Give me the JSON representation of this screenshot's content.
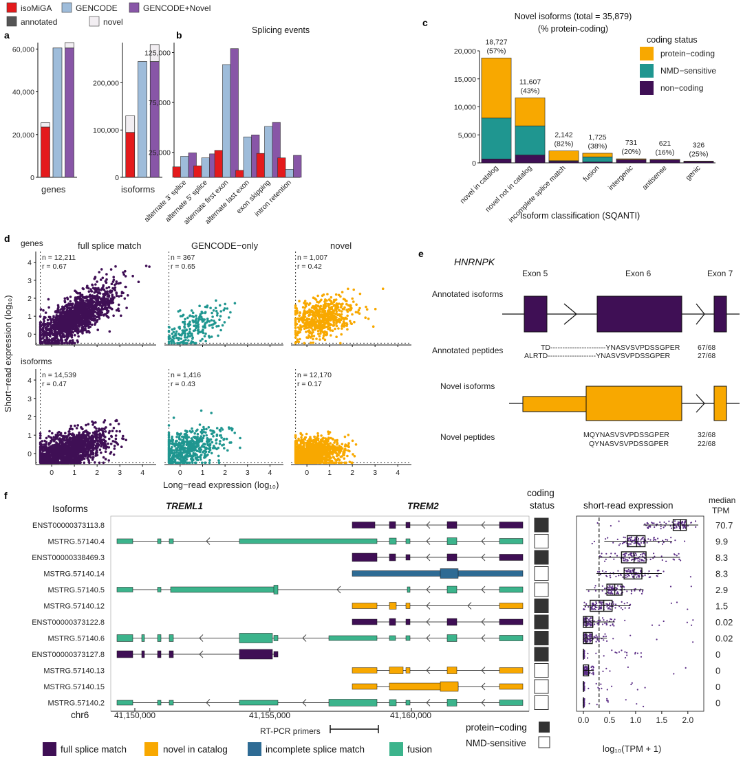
{
  "colors": {
    "isomiga": "#e41a1c",
    "gencode": "#9ebcda",
    "gencode_novel": "#8856a7",
    "annotated": "#555555",
    "novel": "#f2eef2",
    "protein_coding": "#f8a800",
    "nmd": "#1f9690",
    "noncoding": "#3f0f55",
    "fsm": "#3f0f55",
    "nic": "#f8a800",
    "ism": "#2e6b94",
    "fusion": "#3cb48c"
  },
  "legend_top": {
    "items": [
      "isoMiGA",
      "GENCODE",
      "GENCODE+Novel"
    ],
    "shading": [
      "annotated",
      "novel"
    ]
  },
  "panel_a": {
    "label": "a",
    "chart_data": [
      {
        "type": "bar",
        "xlabel": "genes",
        "categories": [
          "isoMiGA",
          "GENCODE",
          "GENCODE+Novel"
        ],
        "annotated": [
          23500,
          60500,
          60500
        ],
        "novel": [
          2000,
          0,
          2500
        ],
        "ylim": [
          0,
          63000
        ],
        "yticks": [
          "0",
          "20,000",
          "40,000",
          "60,000"
        ]
      },
      {
        "type": "bar",
        "xlabel": "isoforms",
        "categories": [
          "isoMiGA",
          "GENCODE",
          "GENCODE+Novel"
        ],
        "annotated": [
          95000,
          245000,
          245000
        ],
        "novel": [
          35000,
          0,
          35879
        ],
        "ylim": [
          0,
          285000
        ],
        "yticks": [
          "0",
          "100,000",
          "200,000"
        ]
      }
    ]
  },
  "panel_b": {
    "label": "b",
    "chart_data": {
      "type": "bar",
      "title": "Splicing events",
      "categories": [
        "alternate 3' splice",
        "alternate 5' splice",
        "alternate first exon",
        "alternate last exon",
        "exon skipping",
        "intron retention"
      ],
      "series": [
        {
          "name": "isoMiGA",
          "values": [
            10500,
            11500,
            27000,
            7000,
            24000,
            19500
          ]
        },
        {
          "name": "GENCODE",
          "values": [
            21000,
            19500,
            113000,
            40500,
            51000,
            8000
          ]
        },
        {
          "name": "GENCODE+Novel",
          "values": [
            24500,
            23500,
            129000,
            42500,
            55000,
            22000
          ]
        }
      ],
      "ylim": [
        0,
        135000
      ],
      "yticks": [
        "25,000",
        "75,000",
        "125,000"
      ]
    }
  },
  "panel_c": {
    "label": "c",
    "chart_data": {
      "type": "bar",
      "title": "Novel isoforms (total = 35,879)",
      "subtitle": "(% protein-coding)",
      "xlabel": "Isoform classification (SQANTI)",
      "legend_title": "coding status",
      "legend": [
        "protein−coding",
        "NMD−sensitive",
        "non−coding"
      ],
      "categories": [
        "novel in catalog",
        "novel not in catalog",
        "incomplete splice match",
        "fusion",
        "intergenic",
        "antisense",
        "genic"
      ],
      "totals": [
        18727,
        11607,
        2142,
        1725,
        731,
        621,
        326
      ],
      "totals_label": [
        "18,727",
        "11,607",
        "2,142",
        "1,725",
        "731",
        "621",
        "326"
      ],
      "pct_label": [
        "(57%)",
        "(43%)",
        "(82%)",
        "(38%)",
        "(20%)",
        "(16%)",
        "(25%)"
      ],
      "protein_coding": [
        10727,
        5000,
        1756,
        655,
        146,
        99,
        82
      ],
      "nmd_sensitive": [
        7300,
        5200,
        100,
        900,
        0,
        0,
        0
      ],
      "non_coding": [
        700,
        1407,
        286,
        170,
        585,
        522,
        244
      ],
      "ylim": [
        0,
        20000
      ],
      "yticks": [
        "0",
        "5,000",
        "10,000",
        "15,000",
        "20,000"
      ]
    }
  },
  "panel_d": {
    "label": "d",
    "xlabel": "Long−read expression (log₁₀)",
    "ylabel": "Short−read expression (log₁₀)",
    "row_labels": [
      "genes",
      "isoforms"
    ],
    "col_titles": [
      "full splice match",
      "GENCODE−only",
      "novel"
    ],
    "xticks": [
      "0",
      "1",
      "2",
      "3",
      "4"
    ],
    "yticks": [
      "0",
      "1",
      "2",
      "3",
      "4"
    ],
    "stats": [
      [
        "n = 12,211",
        "r = 0.67"
      ],
      [
        "n = 367",
        "r = 0.65"
      ],
      [
        "n = 1,007",
        "r = 0.42"
      ],
      [
        "n = 14,539",
        "r = 0.47"
      ],
      [
        "n = 1,416",
        "r = 0.43"
      ],
      [
        "n = 12,170",
        "r = 0.17"
      ]
    ]
  },
  "panel_e": {
    "label": "e",
    "gene": "HNRNPK",
    "exons": [
      "Exon 5",
      "Exon 6",
      "Exon 7"
    ],
    "annotated_isoforms": "Annotated isoforms",
    "annotated_peptides": "Annotated peptides",
    "novel_isoforms": "Novel isoforms",
    "novel_peptides": "Novel peptides",
    "ann_pep": [
      [
        "TD-----------------------YNASVSVPDSSGPER",
        "67/68"
      ],
      [
        "ALRTD--------------------YNASVSVPDSSGPER",
        "27/68"
      ]
    ],
    "nov_pep": [
      [
        "MQYNASVSVPDSSGPER",
        "32/68"
      ],
      [
        "QYNASVSVPDSSGPER",
        "22/68"
      ]
    ]
  },
  "panel_f": {
    "label": "f",
    "isoforms_header": "Isoforms",
    "gene1": "TREML1",
    "gene2": "TREM2",
    "coding_header": [
      "coding",
      "status"
    ],
    "expr_header": "short-read expression",
    "tpm_header": [
      "median",
      "TPM"
    ],
    "chrom": "chr6",
    "coords": [
      "41,150,000",
      "41,155,000",
      "41,160,000"
    ],
    "primers": "RT-PCR primers",
    "xlabel": "log₁₀(TPM + 1)",
    "xticks": [
      "0.0",
      "0.5",
      "1.0",
      "1.5",
      "2.0"
    ],
    "coding_legend": [
      "protein−coding",
      "NMD-sensitive"
    ],
    "rows": [
      {
        "name": "ENST00000373113.8",
        "tpm": "70.7",
        "coding": true,
        "median": 1.86,
        "q1": 1.72,
        "q3": 1.97,
        "lo": 1.15,
        "hi": 2.2
      },
      {
        "name": "MSTRG.57140.4",
        "tpm": "9.9",
        "coding": false,
        "median": 1.02,
        "q1": 0.84,
        "q3": 1.18,
        "lo": 0.4,
        "hi": 1.7
      },
      {
        "name": "ENST00000338469.3",
        "tpm": "8.3",
        "coding": true,
        "median": 0.97,
        "q1": 0.73,
        "q3": 1.2,
        "lo": 0.3,
        "hi": 1.85
      },
      {
        "name": "MSTRG.57140.14",
        "tpm": "8.3",
        "coding": false,
        "median": 0.97,
        "q1": 0.78,
        "q3": 1.12,
        "lo": 0.25,
        "hi": 1.5
      },
      {
        "name": "MSTRG.57140.5",
        "tpm": "2.9",
        "coding": false,
        "median": 0.6,
        "q1": 0.45,
        "q3": 0.74,
        "lo": 0.05,
        "hi": 1.15
      },
      {
        "name": "MSTRG.57140.12",
        "tpm": "1.5",
        "coding": true,
        "median": 0.39,
        "q1": 0.13,
        "q3": 0.55,
        "lo": 0.0,
        "hi": 0.9
      },
      {
        "name": "ENST00000373122.8",
        "tpm": "0.02",
        "coding": true,
        "median": 0.05,
        "q1": 0.0,
        "q3": 0.18,
        "lo": 0.0,
        "hi": 0.6
      },
      {
        "name": "MSTRG.57140.6",
        "tpm": "0.02",
        "coding": true,
        "median": 0.05,
        "q1": 0.0,
        "q3": 0.17,
        "lo": 0.0,
        "hi": 0.45
      },
      {
        "name": "ENST00000373127.8",
        "tpm": "0",
        "coding": true,
        "median": 0.0,
        "q1": 0.0,
        "q3": 0.0,
        "lo": 0.0,
        "hi": 0.0
      },
      {
        "name": "MSTRG.57140.13",
        "tpm": "0",
        "coding": false,
        "median": 0.0,
        "q1": 0.0,
        "q3": 0.1,
        "lo": 0.0,
        "hi": 0.2
      },
      {
        "name": "MSTRG.57140.15",
        "tpm": "0",
        "coding": false,
        "median": 0.0,
        "q1": 0.0,
        "q3": 0.0,
        "lo": 0.0,
        "hi": 0.0
      },
      {
        "name": "MSTRG.57140.2",
        "tpm": "0",
        "coding": false,
        "median": 0.0,
        "q1": 0.0,
        "q3": 0.0,
        "lo": 0.0,
        "hi": 0.0
      }
    ],
    "category_legend": [
      "full splice match",
      "novel in catalog",
      "incomplete splice match",
      "fusion"
    ]
  }
}
